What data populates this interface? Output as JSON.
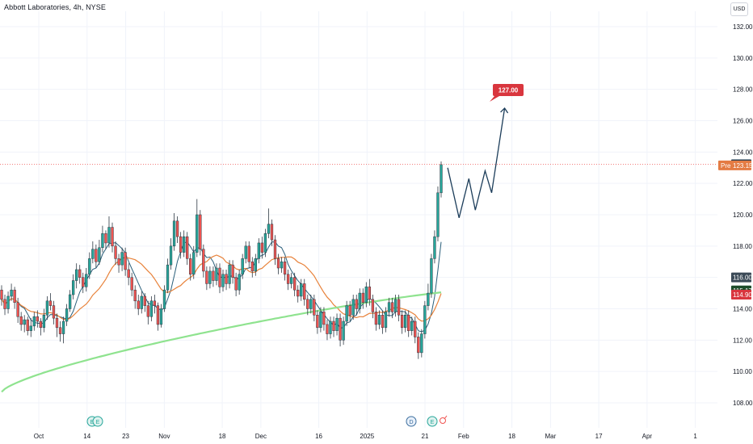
{
  "header": {
    "title": "Abbott Laboratories, 4h, NYSE",
    "currency": "USD"
  },
  "colors": {
    "up": "#26a69a",
    "down": "#ef5350",
    "ma_short": "#2a5f7a",
    "ma_mid": "#e8823a",
    "ma_long": "#8fe38f",
    "projection": "#1c3d5a",
    "target_badge": "#d9363e",
    "last_price_badge": "#1f3a4d",
    "pre_badge": "#e47b43"
  },
  "chart_data": {
    "type": "candlestick",
    "symbol": "Abbott Laboratories",
    "timeframe": "4h",
    "exchange": "NYSE",
    "currency": "USD",
    "ylim": [
      107,
      133
    ],
    "y_ticks": [
      "108.00",
      "110.00",
      "112.00",
      "114.00",
      "116.00",
      "118.00",
      "120.00",
      "122.00",
      "124.00",
      "126.00",
      "128.00",
      "130.00",
      "132.00"
    ],
    "x_ticks": [
      {
        "label": "Oct",
        "pos": 0.0
      },
      {
        "label": "14",
        "pos": 0.125
      },
      {
        "label": "23",
        "pos": 0.225
      },
      {
        "label": "Nov",
        "pos": 0.325
      },
      {
        "label": "18",
        "pos": 0.475
      },
      {
        "label": "Dec",
        "pos": 0.575
      },
      {
        "label": "16",
        "pos": 0.725
      },
      {
        "label": "2025",
        "pos": 0.85
      },
      {
        "label": "21",
        "pos": 1.0
      },
      {
        "label": "Feb",
        "pos": 1.1
      },
      {
        "label": "18",
        "pos": 1.225
      },
      {
        "label": "Mar",
        "pos": 1.325
      },
      {
        "label": "17",
        "pos": 1.45
      },
      {
        "label": "Apr",
        "pos": 1.575
      },
      {
        "label": "1",
        "pos": 1.7
      }
    ],
    "candles": [
      [
        115.2,
        114.6,
        115.5,
        114.2
      ],
      [
        114.6,
        114.0,
        114.9,
        113.6
      ],
      [
        114.0,
        114.8,
        115.1,
        113.7
      ],
      [
        114.8,
        115.2,
        115.6,
        114.5
      ],
      [
        115.2,
        114.4,
        115.4,
        114.0
      ],
      [
        114.4,
        113.5,
        114.7,
        113.1
      ],
      [
        113.5,
        113.0,
        113.8,
        112.6
      ],
      [
        113.0,
        113.3,
        113.6,
        112.5
      ],
      [
        113.3,
        112.6,
        113.5,
        112.3
      ],
      [
        112.6,
        112.9,
        113.4,
        112.2
      ],
      [
        112.9,
        113.5,
        113.8,
        112.6
      ],
      [
        113.5,
        113.2,
        113.9,
        112.8
      ],
      [
        113.2,
        112.8,
        113.4,
        112.3
      ],
      [
        112.8,
        113.6,
        114.0,
        112.5
      ],
      [
        113.6,
        114.5,
        114.8,
        113.3
      ],
      [
        114.5,
        114.2,
        115.0,
        113.9
      ],
      [
        114.2,
        113.4,
        114.5,
        113.0
      ],
      [
        113.4,
        112.8,
        113.7,
        112.2
      ],
      [
        112.8,
        112.4,
        113.2,
        111.9
      ],
      [
        112.4,
        113.2,
        113.5,
        111.8
      ],
      [
        113.2,
        114.0,
        114.3,
        112.9
      ],
      [
        114.0,
        114.9,
        115.2,
        113.8
      ],
      [
        114.9,
        115.8,
        116.2,
        114.6
      ],
      [
        115.8,
        116.5,
        116.9,
        115.3
      ],
      [
        116.5,
        116.0,
        116.8,
        115.6
      ],
      [
        116.0,
        115.4,
        116.3,
        115.0
      ],
      [
        115.4,
        116.2,
        116.6,
        115.1
      ],
      [
        116.2,
        117.2,
        117.6,
        115.9
      ],
      [
        117.2,
        117.8,
        118.3,
        116.9
      ],
      [
        117.8,
        117.0,
        118.1,
        116.6
      ],
      [
        117.0,
        117.9,
        118.4,
        116.8
      ],
      [
        117.9,
        118.8,
        119.3,
        117.6
      ],
      [
        118.8,
        118.2,
        119.0,
        117.8
      ],
      [
        118.2,
        119.2,
        119.9,
        117.9
      ],
      [
        119.2,
        118.0,
        119.5,
        117.6
      ],
      [
        118.0,
        117.2,
        118.3,
        116.8
      ],
      [
        117.2,
        116.8,
        117.5,
        116.3
      ],
      [
        116.8,
        117.6,
        117.9,
        116.4
      ],
      [
        117.6,
        116.5,
        117.9,
        116.1
      ],
      [
        116.5,
        116.0,
        116.9,
        115.5
      ],
      [
        116.0,
        115.2,
        116.3,
        114.8
      ],
      [
        115.2,
        114.5,
        115.5,
        114.0
      ],
      [
        114.5,
        114.0,
        114.9,
        113.6
      ],
      [
        114.0,
        114.8,
        115.1,
        113.7
      ],
      [
        114.8,
        114.2,
        115.0,
        113.8
      ],
      [
        114.2,
        113.5,
        114.5,
        113.0
      ],
      [
        113.5,
        114.5,
        114.8,
        113.2
      ],
      [
        114.5,
        114.2,
        114.9,
        113.7
      ],
      [
        114.2,
        113.0,
        114.4,
        112.6
      ],
      [
        113.0,
        114.0,
        114.3,
        112.8
      ],
      [
        114.0,
        115.2,
        115.5,
        113.8
      ],
      [
        115.2,
        116.8,
        117.2,
        115.0
      ],
      [
        116.8,
        118.0,
        118.5,
        116.5
      ],
      [
        118.0,
        119.6,
        120.1,
        117.7
      ],
      [
        119.6,
        118.6,
        119.9,
        118.2
      ],
      [
        118.6,
        117.6,
        118.9,
        117.2
      ],
      [
        117.6,
        118.6,
        119.0,
        117.3
      ],
      [
        118.6,
        117.2,
        118.9,
        116.8
      ],
      [
        117.2,
        116.2,
        117.5,
        115.8
      ],
      [
        116.2,
        117.6,
        118.0,
        115.9
      ],
      [
        117.6,
        120.0,
        121.0,
        117.3
      ],
      [
        120.0,
        117.8,
        120.3,
        117.4
      ],
      [
        117.8,
        116.4,
        118.1,
        116.0
      ],
      [
        116.4,
        115.6,
        116.7,
        115.2
      ],
      [
        115.6,
        116.4,
        116.7,
        115.3
      ],
      [
        116.4,
        115.8,
        116.7,
        115.4
      ],
      [
        115.8,
        116.6,
        116.9,
        115.5
      ],
      [
        116.6,
        115.4,
        116.9,
        115.0
      ],
      [
        115.4,
        116.2,
        116.5,
        115.1
      ],
      [
        116.2,
        115.6,
        116.5,
        115.2
      ],
      [
        115.6,
        116.8,
        117.1,
        115.3
      ],
      [
        116.8,
        116.0,
        117.1,
        115.6
      ],
      [
        116.0,
        115.2,
        116.3,
        114.8
      ],
      [
        115.2,
        116.2,
        116.5,
        114.9
      ],
      [
        116.2,
        117.2,
        117.5,
        115.9
      ],
      [
        117.2,
        118.0,
        118.3,
        116.9
      ],
      [
        118.0,
        117.0,
        118.3,
        116.6
      ],
      [
        117.0,
        116.4,
        117.3,
        116.0
      ],
      [
        116.4,
        117.2,
        117.5,
        116.1
      ],
      [
        117.2,
        118.2,
        118.5,
        116.9
      ],
      [
        118.2,
        117.6,
        118.6,
        117.2
      ],
      [
        117.6,
        118.8,
        119.1,
        117.3
      ],
      [
        118.8,
        119.4,
        120.4,
        118.5
      ],
      [
        119.4,
        118.4,
        119.7,
        118.0
      ],
      [
        118.4,
        117.2,
        118.7,
        116.8
      ],
      [
        117.2,
        116.6,
        117.5,
        116.2
      ],
      [
        116.6,
        117.0,
        117.3,
        116.3
      ],
      [
        117.0,
        116.2,
        117.3,
        115.8
      ],
      [
        116.2,
        115.6,
        116.5,
        115.2
      ],
      [
        115.6,
        116.0,
        116.3,
        115.3
      ],
      [
        116.0,
        115.2,
        116.3,
        114.8
      ],
      [
        115.2,
        114.8,
        115.5,
        114.4
      ],
      [
        114.8,
        115.6,
        115.9,
        114.5
      ],
      [
        115.6,
        114.6,
        115.9,
        114.2
      ],
      [
        114.6,
        114.0,
        114.9,
        113.6
      ],
      [
        114.0,
        114.6,
        114.9,
        113.7
      ],
      [
        114.6,
        113.6,
        114.9,
        113.2
      ],
      [
        113.6,
        112.8,
        113.9,
        112.4
      ],
      [
        112.8,
        113.8,
        114.1,
        112.5
      ],
      [
        113.8,
        113.0,
        114.1,
        112.6
      ],
      [
        113.0,
        112.4,
        113.3,
        112.0
      ],
      [
        112.4,
        113.2,
        113.5,
        112.1
      ],
      [
        113.2,
        112.6,
        113.5,
        112.2
      ],
      [
        112.6,
        113.4,
        113.7,
        112.3
      ],
      [
        113.4,
        112.0,
        113.7,
        111.6
      ],
      [
        112.0,
        113.2,
        113.5,
        111.7
      ],
      [
        113.2,
        114.2,
        114.5,
        112.9
      ],
      [
        114.2,
        113.6,
        114.5,
        113.2
      ],
      [
        113.6,
        114.6,
        114.9,
        113.3
      ],
      [
        114.6,
        114.0,
        114.9,
        113.6
      ],
      [
        114.0,
        115.0,
        115.3,
        113.7
      ],
      [
        115.0,
        114.4,
        115.3,
        114.0
      ],
      [
        114.4,
        115.4,
        115.7,
        114.1
      ],
      [
        115.4,
        114.6,
        115.9,
        114.2
      ],
      [
        114.6,
        113.8,
        114.9,
        113.4
      ],
      [
        113.8,
        113.0,
        114.1,
        112.6
      ],
      [
        113.0,
        113.6,
        113.9,
        112.7
      ],
      [
        113.6,
        112.8,
        113.9,
        112.4
      ],
      [
        112.8,
        113.8,
        114.1,
        112.5
      ],
      [
        113.8,
        114.4,
        114.7,
        113.5
      ],
      [
        114.4,
        113.8,
        114.7,
        113.4
      ],
      [
        113.8,
        114.6,
        114.9,
        113.5
      ],
      [
        114.6,
        113.6,
        114.9,
        113.2
      ],
      [
        113.6,
        112.8,
        113.9,
        112.4
      ],
      [
        112.8,
        113.6,
        113.9,
        112.5
      ],
      [
        113.6,
        112.6,
        113.9,
        112.2
      ],
      [
        112.6,
        113.2,
        113.5,
        112.3
      ],
      [
        113.2,
        112.2,
        113.5,
        111.8
      ],
      [
        112.2,
        111.2,
        112.5,
        110.8
      ],
      [
        111.2,
        112.4,
        112.7,
        110.9
      ],
      [
        112.4,
        114.2,
        114.5,
        112.1
      ],
      [
        114.2,
        115.0,
        115.6,
        113.9
      ],
      [
        115.0,
        117.2,
        117.5,
        114.7
      ],
      [
        117.2,
        118.6,
        119.0,
        116.9
      ],
      [
        118.6,
        121.4,
        121.8,
        118.3
      ],
      [
        121.4,
        123.2,
        123.4,
        121.1
      ]
    ],
    "projection": [
      {
        "i": 137,
        "y": 123.0
      },
      {
        "i": 140.5,
        "y": 119.8
      },
      {
        "i": 143.5,
        "y": 122.3
      },
      {
        "i": 145.5,
        "y": 120.3
      },
      {
        "i": 148.5,
        "y": 122.8
      },
      {
        "i": 150.5,
        "y": 121.4
      },
      {
        "i": 154.5,
        "y": 126.8
      }
    ],
    "target_price": "127.00",
    "last_price": "123.22",
    "pre_market_label": "Pre",
    "pre_market_price": "123.15",
    "level_116": "116.00",
    "ma_label_1": "115.17",
    "ma_label_2": "114.90",
    "events": [
      "E",
      "E",
      "D",
      "E"
    ]
  }
}
